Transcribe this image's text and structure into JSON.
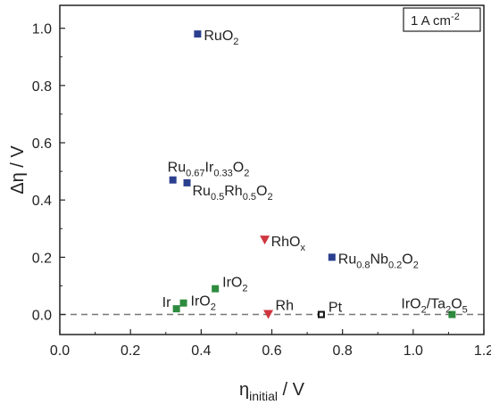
{
  "chart_data": {
    "type": "scatter",
    "xlabel": {
      "main": "η",
      "sub": "initial",
      "unit": " / V"
    },
    "ylabel": {
      "main": "Δη / V"
    },
    "xlim": [
      0.0,
      1.2
    ],
    "ylim": [
      -0.07,
      1.08
    ],
    "xticks": [
      "0.0",
      "0.2",
      "0.4",
      "0.6",
      "0.8",
      "1.0",
      "1.2"
    ],
    "xtick_values": [
      0.0,
      0.2,
      0.4,
      0.6,
      0.8,
      1.0,
      1.2
    ],
    "yticks": [
      "0.0",
      "0.2",
      "0.4",
      "0.6",
      "0.8",
      "1.0"
    ],
    "ytick_values": [
      0.0,
      0.2,
      0.4,
      0.6,
      0.8,
      1.0
    ],
    "inset_label": {
      "main": "1 A cm",
      "sup": "-2"
    },
    "reference_line": {
      "y": 0.0,
      "style": "dashed",
      "color": "#777777"
    },
    "points": [
      {
        "x": 0.39,
        "y": 0.98,
        "color": "#2b3f8f",
        "marker": "square",
        "label": [
          {
            "t": "RuO"
          },
          {
            "t": "2",
            "s": "sub"
          }
        ]
      },
      {
        "x": 0.32,
        "y": 0.47,
        "color": "#2b3f8f",
        "marker": "square",
        "label": [
          {
            "t": "Ru"
          },
          {
            "t": "0.67",
            "s": "sub"
          },
          {
            "t": "Ir"
          },
          {
            "t": "0.33",
            "s": "sub"
          },
          {
            "t": "O"
          },
          {
            "t": "2",
            "s": "sub"
          }
        ]
      },
      {
        "x": 0.36,
        "y": 0.46,
        "color": "#2b3f8f",
        "marker": "square",
        "label": [
          {
            "t": "Ru"
          },
          {
            "t": "0.5",
            "s": "sub"
          },
          {
            "t": "Rh"
          },
          {
            "t": "0.5",
            "s": "sub"
          },
          {
            "t": "O"
          },
          {
            "t": "2",
            "s": "sub"
          }
        ]
      },
      {
        "x": 0.77,
        "y": 0.2,
        "color": "#2b3f8f",
        "marker": "square",
        "label": [
          {
            "t": "Ru"
          },
          {
            "t": "0.8",
            "s": "sub"
          },
          {
            "t": "Nb"
          },
          {
            "t": "0.2",
            "s": "sub"
          },
          {
            "t": "O"
          },
          {
            "t": "2",
            "s": "sub"
          }
        ]
      },
      {
        "x": 0.58,
        "y": 0.26,
        "color": "#d0363f",
        "marker": "triangle-down",
        "label": [
          {
            "t": "RhO"
          },
          {
            "t": "x",
            "s": "sub"
          }
        ]
      },
      {
        "x": 0.59,
        "y": 0.0,
        "color": "#d0363f",
        "marker": "triangle-down",
        "label": [
          {
            "t": "Rh"
          }
        ]
      },
      {
        "x": 0.44,
        "y": 0.09,
        "color": "#2e8b3e",
        "marker": "square",
        "label": [
          {
            "t": "IrO"
          },
          {
            "t": "2",
            "s": "sub"
          }
        ]
      },
      {
        "x": 0.35,
        "y": 0.04,
        "color": "#2e8b3e",
        "marker": "square",
        "label": [
          {
            "t": "IrO"
          },
          {
            "t": "2",
            "s": "sub"
          }
        ]
      },
      {
        "x": 0.33,
        "y": 0.02,
        "color": "#2e8b3e",
        "marker": "square",
        "label": [
          {
            "t": "Ir"
          }
        ]
      },
      {
        "x": 0.74,
        "y": 0.0,
        "color": "#111111",
        "marker": "square-open",
        "label": [
          {
            "t": "Pt"
          }
        ]
      },
      {
        "x": 1.11,
        "y": 0.0,
        "color": "#2e8b3e",
        "marker": "square",
        "label": [
          {
            "t": "IrO"
          },
          {
            "t": "2",
            "s": "sub"
          },
          {
            "t": "/Ta"
          },
          {
            "t": "2",
            "s": "sub"
          },
          {
            "t": "O"
          },
          {
            "t": "5",
            "s": "sub"
          }
        ]
      }
    ]
  }
}
